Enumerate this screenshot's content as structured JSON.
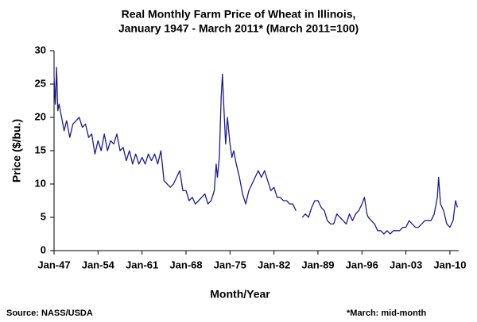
{
  "chart_data": {
    "type": "line",
    "title": [
      "Real Monthly Farm Price of Wheat in Illinois,",
      "January 1947 - March 2011* (March 2011=100)"
    ],
    "x_label": "Month/Year",
    "y_label": "Price ($/bu.)",
    "source": "Source: NASS/USDA",
    "note": "*March: mid-month",
    "xlim": [
      1947,
      2011.4
    ],
    "ylim": [
      0,
      30
    ],
    "yticks": [
      0,
      5,
      10,
      15,
      20,
      25,
      30
    ],
    "xticks": [
      {
        "value": 1947,
        "label": "Jan-47"
      },
      {
        "value": 1954,
        "label": "Jan-54"
      },
      {
        "value": 1961,
        "label": "Jan-61"
      },
      {
        "value": 1968,
        "label": "Jan-68"
      },
      {
        "value": 1975,
        "label": "Jan-75"
      },
      {
        "value": 1982,
        "label": "Jan-82"
      },
      {
        "value": 1989,
        "label": "Jan-89"
      },
      {
        "value": 1996,
        "label": "Jan-96"
      },
      {
        "value": 2003,
        "label": "Jan-03"
      },
      {
        "value": 2010,
        "label": "Jan-10"
      }
    ],
    "x": [
      1947.0,
      1947.2,
      1947.4,
      1947.6,
      1947.8,
      1948.2,
      1948.6,
      1949.0,
      1949.5,
      1950.0,
      1950.5,
      1951.0,
      1951.5,
      1952.0,
      1952.5,
      1953.0,
      1953.5,
      1954.0,
      1954.5,
      1955.0,
      1955.5,
      1956.0,
      1956.5,
      1957.0,
      1957.5,
      1958.0,
      1958.5,
      1959.0,
      1959.5,
      1960.0,
      1960.5,
      1961.0,
      1961.5,
      1962.0,
      1962.5,
      1963.0,
      1963.5,
      1964.0,
      1964.5,
      1965.0,
      1965.5,
      1966.0,
      1966.5,
      1967.0,
      1967.5,
      1968.0,
      1968.5,
      1969.0,
      1969.5,
      1970.0,
      1970.5,
      1971.0,
      1971.5,
      1972.0,
      1972.5,
      1972.8,
      1973.0,
      1973.3,
      1973.6,
      1973.8,
      1974.0,
      1974.3,
      1974.6,
      1975.0,
      1975.3,
      1975.6,
      1976.0,
      1976.5,
      1977.0,
      1977.5,
      1978.0,
      1978.5,
      1979.0,
      1979.5,
      1980.0,
      1980.5,
      1981.0,
      1981.5,
      1982.0,
      1982.5,
      1983.0,
      1983.5,
      1984.0,
      1984.5,
      1985.0,
      1985.5,
      1986.0,
      1986.5,
      1987.0,
      1987.5,
      1988.0,
      1988.5,
      1989.0,
      1989.5,
      1990.0,
      1990.5,
      1991.0,
      1991.5,
      1992.0,
      1992.5,
      1993.0,
      1993.5,
      1994.0,
      1994.5,
      1995.0,
      1995.5,
      1996.0,
      1996.4,
      1996.8,
      1997.0,
      1997.5,
      1998.0,
      1998.5,
      1999.0,
      1999.5,
      2000.0,
      2000.5,
      2001.0,
      2001.5,
      2002.0,
      2002.5,
      2003.0,
      2003.5,
      2004.0,
      2004.5,
      2005.0,
      2005.5,
      2006.0,
      2006.5,
      2007.0,
      2007.5,
      2008.0,
      2008.2,
      2008.5,
      2009.0,
      2009.5,
      2010.0,
      2010.5,
      2010.9,
      2011.2
    ],
    "series": [
      {
        "name": "Price",
        "color": "#1c1c8f",
        "values": [
          26,
          22,
          27.5,
          21,
          22,
          20,
          18,
          19.5,
          17,
          19,
          19.5,
          20,
          18.5,
          19,
          17,
          17.5,
          14.5,
          16.5,
          15,
          17.5,
          15,
          16.5,
          16,
          17.5,
          15,
          15.5,
          13.5,
          15,
          13,
          14.5,
          13,
          14,
          13,
          14.5,
          13.5,
          14.5,
          13,
          15,
          10.5,
          10,
          9.5,
          10,
          11,
          12,
          9,
          9,
          7.5,
          8,
          7,
          7.5,
          8,
          8.5,
          7,
          7.5,
          9,
          13,
          11,
          14,
          23,
          26.5,
          22,
          16,
          20,
          16,
          14,
          15,
          13,
          11,
          8.5,
          7,
          9,
          10,
          11,
          12,
          11,
          12,
          10.5,
          9,
          9.5,
          8,
          8,
          7.5,
          7.5,
          7,
          7,
          6,
          null,
          5,
          5.5,
          5,
          6.5,
          7.5,
          7.5,
          6.5,
          6,
          4.5,
          4,
          4,
          5.5,
          5,
          4.5,
          4,
          5.5,
          4.5,
          5.5,
          6,
          7,
          8,
          5.5,
          5,
          4.5,
          4,
          3,
          3,
          2.5,
          3,
          2.5,
          3,
          3,
          3,
          3.5,
          3.5,
          4.5,
          4,
          3.5,
          3.5,
          4,
          4.5,
          4.5,
          4.5,
          5.5,
          8,
          11,
          7,
          6,
          4,
          3.5,
          4.5,
          7.5,
          6.5
        ]
      }
    ]
  }
}
